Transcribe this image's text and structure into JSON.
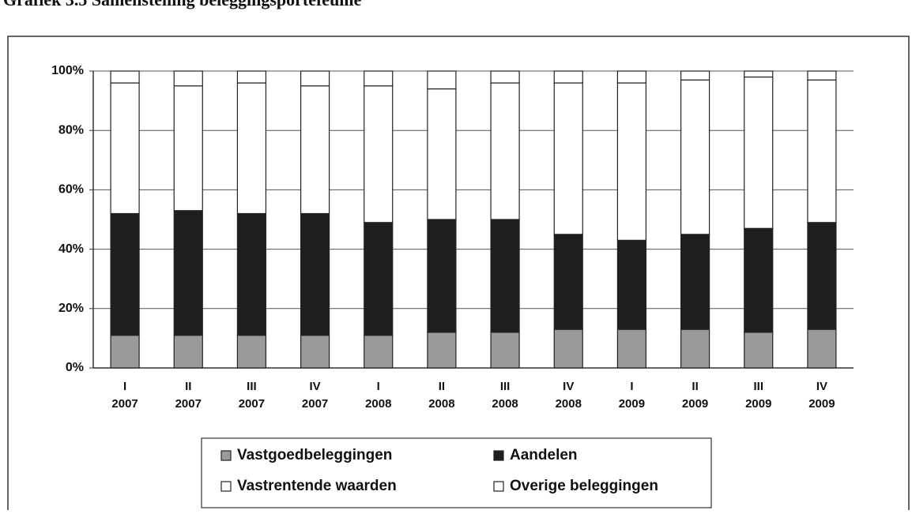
{
  "chart_data": {
    "type": "stacked_bar",
    "title": "Grafiek 3.5 Samenstelling beleggingsportefeuille",
    "categories": [
      [
        "I",
        "2007"
      ],
      [
        "II",
        "2007"
      ],
      [
        "III",
        "2007"
      ],
      [
        "IV",
        "2007"
      ],
      [
        "I",
        "2008"
      ],
      [
        "II",
        "2008"
      ],
      [
        "III",
        "2008"
      ],
      [
        "IV",
        "2008"
      ],
      [
        "I",
        "2009"
      ],
      [
        "II",
        "2009"
      ],
      [
        "III",
        "2009"
      ],
      [
        "IV",
        "2009"
      ]
    ],
    "series": [
      {
        "name": "Vastgoedbeleggingen",
        "color": "#9a9a9a",
        "values": [
          11,
          11,
          11,
          11,
          11,
          12,
          12,
          13,
          13,
          13,
          12,
          13
        ]
      },
      {
        "name": "Aandelen",
        "color": "#1e1e1e",
        "values": [
          41,
          42,
          41,
          41,
          38,
          38,
          38,
          32,
          30,
          32,
          35,
          36
        ]
      },
      {
        "name": "Vastrentende waarden",
        "color": "#ffffff",
        "values": [
          44,
          42,
          44,
          43,
          46,
          44,
          46,
          51,
          53,
          52,
          51,
          48
        ]
      },
      {
        "name": "Overige beleggingen",
        "color": "#ffffff",
        "values": [
          4,
          5,
          4,
          5,
          5,
          6,
          4,
          4,
          4,
          3,
          2,
          3
        ]
      }
    ],
    "ylim": [
      0,
      100
    ],
    "yticks": [
      {
        "value": 0,
        "label": "0%"
      },
      {
        "value": 20,
        "label": "20%"
      },
      {
        "value": 40,
        "label": "40%"
      },
      {
        "value": 60,
        "label": "60%"
      },
      {
        "value": 80,
        "label": "80%"
      },
      {
        "value": 100,
        "label": "100%"
      }
    ],
    "grid": true
  }
}
